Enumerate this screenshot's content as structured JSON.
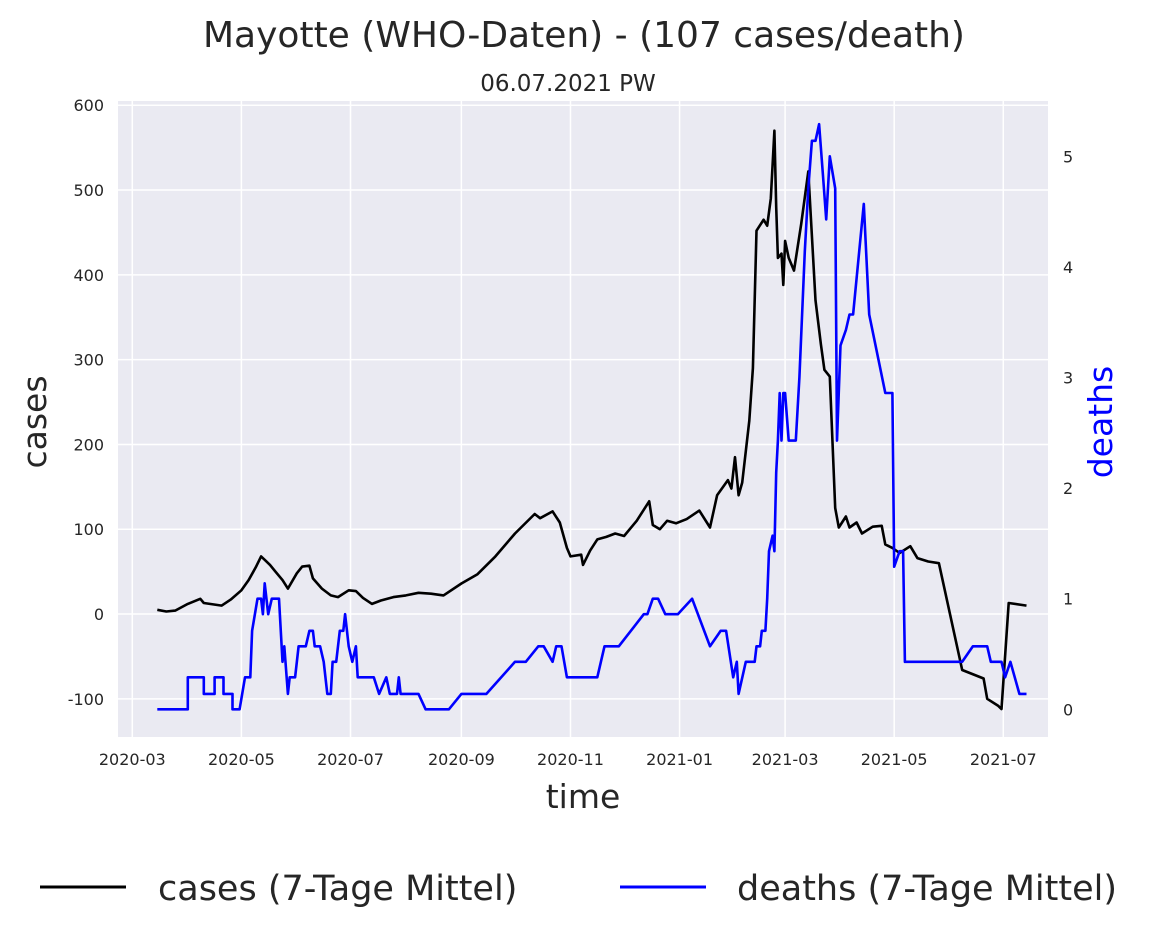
{
  "chart_data": {
    "type": "line",
    "title": "Mayotte (WHO-Daten) - (107 cases/death)",
    "subtitle": "06.07.2021 PW",
    "xlabel": "time",
    "ylabel": "cases",
    "ylabel_right": "deaths",
    "ylabel_right_color": "#0000ff",
    "x_ticks": [
      "2020-03",
      "2020-05",
      "2020-07",
      "2020-09",
      "2020-11",
      "2021-01",
      "2021-03",
      "2021-05",
      "2021-07"
    ],
    "y_ticks_left": [
      "-100",
      "0",
      "100",
      "200",
      "300",
      "400",
      "500",
      "600"
    ],
    "y_ticks_right": [
      "0",
      "1",
      "2",
      "3",
      "4",
      "5"
    ],
    "ylim_left": [
      -145,
      605
    ],
    "ylim_right": [
      -0.25,
      5.5
    ],
    "grid": true,
    "legend_position": "bottom",
    "series": [
      {
        "name": "cases (7-Tage Mittel)",
        "axis": "left",
        "color": "#000000",
        "points": [
          [
            "2020-03-15",
            5
          ],
          [
            "2020-03-20",
            3
          ],
          [
            "2020-03-25",
            4
          ],
          [
            "2020-04-01",
            12
          ],
          [
            "2020-04-08",
            18
          ],
          [
            "2020-04-10",
            13
          ],
          [
            "2020-04-20",
            10
          ],
          [
            "2020-04-25",
            17
          ],
          [
            "2020-05-01",
            28
          ],
          [
            "2020-05-05",
            40
          ],
          [
            "2020-05-09",
            55
          ],
          [
            "2020-05-12",
            68
          ],
          [
            "2020-05-14",
            64
          ],
          [
            "2020-05-17",
            58
          ],
          [
            "2020-05-20",
            50
          ],
          [
            "2020-05-24",
            40
          ],
          [
            "2020-05-27",
            30
          ],
          [
            "2020-06-01",
            48
          ],
          [
            "2020-06-04",
            56
          ],
          [
            "2020-06-08",
            57
          ],
          [
            "2020-06-10",
            42
          ],
          [
            "2020-06-15",
            30
          ],
          [
            "2020-06-20",
            22
          ],
          [
            "2020-06-24",
            20
          ],
          [
            "2020-06-30",
            28
          ],
          [
            "2020-07-04",
            27
          ],
          [
            "2020-07-08",
            19
          ],
          [
            "2020-07-13",
            12
          ],
          [
            "2020-07-18",
            16
          ],
          [
            "2020-07-25",
            20
          ],
          [
            "2020-08-01",
            22
          ],
          [
            "2020-08-08",
            25
          ],
          [
            "2020-08-15",
            24
          ],
          [
            "2020-08-22",
            22
          ],
          [
            "2020-09-01",
            36
          ],
          [
            "2020-09-10",
            47
          ],
          [
            "2020-09-20",
            68
          ],
          [
            "2020-10-01",
            95
          ],
          [
            "2020-10-12",
            118
          ],
          [
            "2020-10-15",
            113
          ],
          [
            "2020-10-22",
            121
          ],
          [
            "2020-10-26",
            108
          ],
          [
            "2020-10-30",
            78
          ],
          [
            "2020-11-01",
            68
          ],
          [
            "2020-11-07",
            70
          ],
          [
            "2020-11-08",
            58
          ],
          [
            "2020-11-12",
            75
          ],
          [
            "2020-11-16",
            88
          ],
          [
            "2020-11-21",
            91
          ],
          [
            "2020-11-26",
            95
          ],
          [
            "2020-12-01",
            92
          ],
          [
            "2020-12-08",
            110
          ],
          [
            "2020-12-15",
            133
          ],
          [
            "2020-12-17",
            105
          ],
          [
            "2020-12-21",
            100
          ],
          [
            "2020-12-25",
            110
          ],
          [
            "2020-12-30",
            107
          ],
          [
            "2021-01-05",
            112
          ],
          [
            "2021-01-12",
            122
          ],
          [
            "2021-01-18",
            102
          ],
          [
            "2021-01-22",
            140
          ],
          [
            "2021-01-28",
            158
          ],
          [
            "2021-01-30",
            148
          ],
          [
            "2021-02-01",
            185
          ],
          [
            "2021-02-03",
            140
          ],
          [
            "2021-02-05",
            155
          ],
          [
            "2021-02-09",
            228
          ],
          [
            "2021-02-11",
            290
          ],
          [
            "2021-02-13",
            452
          ],
          [
            "2021-02-17",
            465
          ],
          [
            "2021-02-19",
            458
          ],
          [
            "2021-02-21",
            490
          ],
          [
            "2021-02-23",
            570
          ],
          [
            "2021-02-24",
            480
          ],
          [
            "2021-02-25",
            420
          ],
          [
            "2021-02-27",
            425
          ],
          [
            "2021-02-28",
            388
          ],
          [
            "2021-03-01",
            440
          ],
          [
            "2021-03-03",
            420
          ],
          [
            "2021-03-06",
            405
          ],
          [
            "2021-03-10",
            460
          ],
          [
            "2021-03-14",
            522
          ],
          [
            "2021-03-18",
            370
          ],
          [
            "2021-03-21",
            318
          ],
          [
            "2021-03-23",
            288
          ],
          [
            "2021-03-26",
            280
          ],
          [
            "2021-03-29",
            125
          ],
          [
            "2021-03-31",
            102
          ],
          [
            "2021-04-04",
            115
          ],
          [
            "2021-04-06",
            102
          ],
          [
            "2021-04-10",
            108
          ],
          [
            "2021-04-13",
            95
          ],
          [
            "2021-04-19",
            103
          ],
          [
            "2021-04-24",
            104
          ],
          [
            "2021-04-26",
            82
          ],
          [
            "2021-04-30",
            78
          ],
          [
            "2021-05-04",
            72
          ],
          [
            "2021-05-10",
            80
          ],
          [
            "2021-05-14",
            66
          ],
          [
            "2021-05-20",
            62
          ],
          [
            "2021-05-26",
            60
          ],
          [
            "2021-06-08",
            -66
          ],
          [
            "2021-06-20",
            -76
          ],
          [
            "2021-06-22",
            -100
          ],
          [
            "2021-06-28",
            -108
          ],
          [
            "2021-06-30",
            -112
          ],
          [
            "2021-07-04",
            13
          ],
          [
            "2021-07-14",
            10
          ]
        ]
      },
      {
        "name": "deaths (7-Tage Mittel)",
        "axis": "right",
        "color": "#0000ff",
        "points": [
          [
            "2020-03-15",
            0
          ],
          [
            "2020-04-01",
            0
          ],
          [
            "2020-04-01",
            0.29
          ],
          [
            "2020-04-10",
            0.29
          ],
          [
            "2020-04-10",
            0.14
          ],
          [
            "2020-04-16",
            0.14
          ],
          [
            "2020-04-16",
            0.29
          ],
          [
            "2020-04-21",
            0.29
          ],
          [
            "2020-04-21",
            0.14
          ],
          [
            "2020-04-26",
            0.14
          ],
          [
            "2020-04-26",
            0
          ],
          [
            "2020-04-30",
            0
          ],
          [
            "2020-05-03",
            0.29
          ],
          [
            "2020-05-06",
            0.29
          ],
          [
            "2020-05-07",
            0.71
          ],
          [
            "2020-05-10",
            1.0
          ],
          [
            "2020-05-12",
            1.0
          ],
          [
            "2020-05-13",
            0.86
          ],
          [
            "2020-05-14",
            1.14
          ],
          [
            "2020-05-16",
            0.86
          ],
          [
            "2020-05-18",
            1.0
          ],
          [
            "2020-05-22",
            1.0
          ],
          [
            "2020-05-24",
            0.43
          ],
          [
            "2020-05-25",
            0.57
          ],
          [
            "2020-05-27",
            0.14
          ],
          [
            "2020-05-28",
            0.29
          ],
          [
            "2020-05-31",
            0.29
          ],
          [
            "2020-06-02",
            0.57
          ],
          [
            "2020-06-06",
            0.57
          ],
          [
            "2020-06-08",
            0.71
          ],
          [
            "2020-06-10",
            0.71
          ],
          [
            "2020-06-11",
            0.57
          ],
          [
            "2020-06-14",
            0.57
          ],
          [
            "2020-06-16",
            0.43
          ],
          [
            "2020-06-18",
            0.14
          ],
          [
            "2020-06-20",
            0.14
          ],
          [
            "2020-06-21",
            0.43
          ],
          [
            "2020-06-23",
            0.43
          ],
          [
            "2020-06-25",
            0.71
          ],
          [
            "2020-06-27",
            0.71
          ],
          [
            "2020-06-28",
            0.86
          ],
          [
            "2020-06-30",
            0.57
          ],
          [
            "2020-07-02",
            0.43
          ],
          [
            "2020-07-04",
            0.57
          ],
          [
            "2020-07-05",
            0.29
          ],
          [
            "2020-07-14",
            0.29
          ],
          [
            "2020-07-17",
            0.14
          ],
          [
            "2020-07-21",
            0.29
          ],
          [
            "2020-07-23",
            0.14
          ],
          [
            "2020-07-27",
            0.14
          ],
          [
            "2020-07-28",
            0.29
          ],
          [
            "2020-07-29",
            0.14
          ],
          [
            "2020-08-08",
            0.14
          ],
          [
            "2020-08-12",
            0
          ],
          [
            "2020-08-22",
            0
          ],
          [
            "2020-08-25",
            0
          ],
          [
            "2020-09-01",
            0.14
          ],
          [
            "2020-09-15",
            0.14
          ],
          [
            "2020-10-01",
            0.43
          ],
          [
            "2020-10-07",
            0.43
          ],
          [
            "2020-10-14",
            0.57
          ],
          [
            "2020-10-17",
            0.57
          ],
          [
            "2020-10-22",
            0.43
          ],
          [
            "2020-10-24",
            0.57
          ],
          [
            "2020-10-27",
            0.57
          ],
          [
            "2020-10-30",
            0.29
          ],
          [
            "2020-11-12",
            0.29
          ],
          [
            "2020-11-16",
            0.29
          ],
          [
            "2020-11-20",
            0.57
          ],
          [
            "2020-11-28",
            0.57
          ],
          [
            "2020-12-12",
            0.86
          ],
          [
            "2020-12-14",
            0.86
          ],
          [
            "2020-12-17",
            1.0
          ],
          [
            "2020-12-20",
            1.0
          ],
          [
            "2020-12-24",
            0.86
          ],
          [
            "2020-12-31",
            0.86
          ],
          [
            "2021-01-08",
            1.0
          ],
          [
            "2021-01-18",
            0.57
          ],
          [
            "2021-01-24",
            0.71
          ],
          [
            "2021-01-27",
            0.71
          ],
          [
            "2021-01-31",
            0.29
          ],
          [
            "2021-02-02",
            0.43
          ],
          [
            "2021-02-03",
            0.14
          ],
          [
            "2021-02-07",
            0.43
          ],
          [
            "2021-02-12",
            0.43
          ],
          [
            "2021-02-13",
            0.57
          ],
          [
            "2021-02-15",
            0.57
          ],
          [
            "2021-02-16",
            0.71
          ],
          [
            "2021-02-18",
            0.71
          ],
          [
            "2021-02-19",
            1.0
          ],
          [
            "2021-02-20",
            1.43
          ],
          [
            "2021-02-22",
            1.57
          ],
          [
            "2021-02-23",
            1.43
          ],
          [
            "2021-02-24",
            2.14
          ],
          [
            "2021-02-25",
            2.43
          ],
          [
            "2021-02-26",
            2.86
          ],
          [
            "2021-02-27",
            2.43
          ],
          [
            "2021-02-28",
            2.86
          ],
          [
            "2021-03-01",
            2.86
          ],
          [
            "2021-03-03",
            2.43
          ],
          [
            "2021-03-07",
            2.43
          ],
          [
            "2021-03-09",
            3.0
          ],
          [
            "2021-03-12",
            4.14
          ],
          [
            "2021-03-14",
            4.71
          ],
          [
            "2021-03-16",
            5.14
          ],
          [
            "2021-03-18",
            5.14
          ],
          [
            "2021-03-20",
            5.29
          ],
          [
            "2021-03-22",
            4.86
          ],
          [
            "2021-03-24",
            4.43
          ],
          [
            "2021-03-26",
            5.0
          ],
          [
            "2021-03-29",
            4.71
          ],
          [
            "2021-03-30",
            2.43
          ],
          [
            "2021-04-01",
            3.29
          ],
          [
            "2021-04-04",
            3.43
          ],
          [
            "2021-04-06",
            3.57
          ],
          [
            "2021-04-08",
            3.57
          ],
          [
            "2021-04-14",
            4.57
          ],
          [
            "2021-04-17",
            3.57
          ],
          [
            "2021-04-26",
            2.86
          ],
          [
            "2021-04-30",
            2.86
          ],
          [
            "2021-05-01",
            1.29
          ],
          [
            "2021-05-04",
            1.43
          ],
          [
            "2021-05-06",
            1.43
          ],
          [
            "2021-05-07",
            0.43
          ],
          [
            "2021-05-20",
            0.43
          ],
          [
            "2021-06-06",
            0.43
          ],
          [
            "2021-06-08",
            0.43
          ],
          [
            "2021-06-14",
            0.57
          ],
          [
            "2021-06-22",
            0.57
          ],
          [
            "2021-06-24",
            0.43
          ],
          [
            "2021-06-30",
            0.43
          ],
          [
            "2021-07-02",
            0.29
          ],
          [
            "2021-07-05",
            0.43
          ],
          [
            "2021-07-10",
            0.14
          ],
          [
            "2021-07-14",
            0.14
          ]
        ]
      }
    ]
  }
}
